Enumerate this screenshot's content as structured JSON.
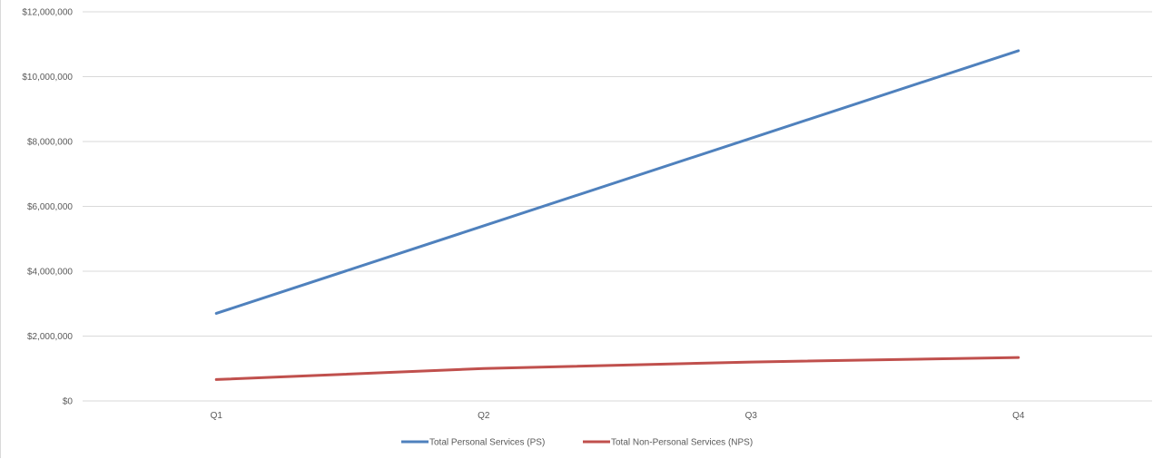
{
  "chart_data": {
    "type": "line",
    "categories": [
      "Q1",
      "Q2",
      "Q3",
      "Q4"
    ],
    "series": [
      {
        "name": "Total Personal Services (PS)",
        "color": "#4f81bd",
        "values": [
          2700000,
          5400000,
          8100000,
          10800000
        ]
      },
      {
        "name": "Total Non-Personal Services (NPS)",
        "color": "#c0504d",
        "values": [
          660000,
          1000000,
          1200000,
          1340000
        ]
      }
    ],
    "ylim": [
      0,
      12000000
    ],
    "yticks": [
      0,
      2000000,
      4000000,
      6000000,
      8000000,
      10000000,
      12000000
    ],
    "ytick_labels": [
      "$0",
      "$2,000,000",
      "$4,000,000",
      "$6,000,000",
      "$8,000,000",
      "$10,000,000",
      "$12,000,000"
    ],
    "grid": true,
    "legend": "bottom"
  }
}
